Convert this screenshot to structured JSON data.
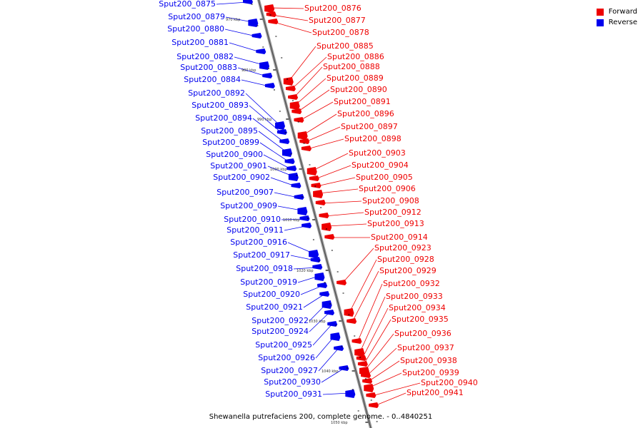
{
  "colors": {
    "forward": "#ee0000",
    "reverse": "#0000ee",
    "axis": "#999999"
  },
  "legend": [
    {
      "label": "Forward",
      "color": "#ee0000"
    },
    {
      "label": "Reverse",
      "color": "#0000ee"
    }
  ],
  "caption": "Shewanella putrefaciens 200, complete genome. - 0..4840251",
  "ticks": [
    "970 kbp",
    "980 kbp",
    "990 kbp",
    "1000 kbp",
    "1010 kbp",
    "1020 kbp",
    "1030 kbp",
    "1040 kbp",
    "1050 kbp"
  ],
  "reverse_genes": [
    "Sput200_0875",
    "Sput200_0879",
    "Sput200_0880",
    "Sput200_0881",
    "Sput200_0882",
    "Sput200_0883",
    "Sput200_0884",
    "Sput200_0892",
    "Sput200_0893",
    "Sput200_0894",
    "Sput200_0895",
    "Sput200_0899",
    "Sput200_0900",
    "Sput200_0901",
    "Sput200_0902",
    "Sput200_0907",
    "Sput200_0909",
    "Sput200_0910",
    "Sput200_0911",
    "Sput200_0916",
    "Sput200_0917",
    "Sput200_0918",
    "Sput200_0919",
    "Sput200_0920",
    "Sput200_0921",
    "Sput200_0922",
    "Sput200_0924",
    "Sput200_0925",
    "Sput200_0926",
    "Sput200_0927",
    "Sput200_0930",
    "Sput200_0931"
  ],
  "forward_genes": [
    "Sput200_0876",
    "Sput200_0877",
    "Sput200_0878",
    "Sput200_0885",
    "Sput200_0886",
    "Sput200_0888",
    "Sput200_0889",
    "Sput200_0890",
    "Sput200_0891",
    "Sput200_0896",
    "Sput200_0897",
    "Sput200_0898",
    "Sput200_0903",
    "Sput200_0904",
    "Sput200_0905",
    "Sput200_0906",
    "Sput200_0908",
    "Sput200_0912",
    "Sput200_0913",
    "Sput200_0914",
    "Sput200_0923",
    "Sput200_0928",
    "Sput200_0929",
    "Sput200_0932",
    "Sput200_0933",
    "Sput200_0934",
    "Sput200_0935",
    "Sput200_0936",
    "Sput200_0937",
    "Sput200_0938",
    "Sput200_0939",
    "Sput200_0940",
    "Sput200_0941"
  ]
}
